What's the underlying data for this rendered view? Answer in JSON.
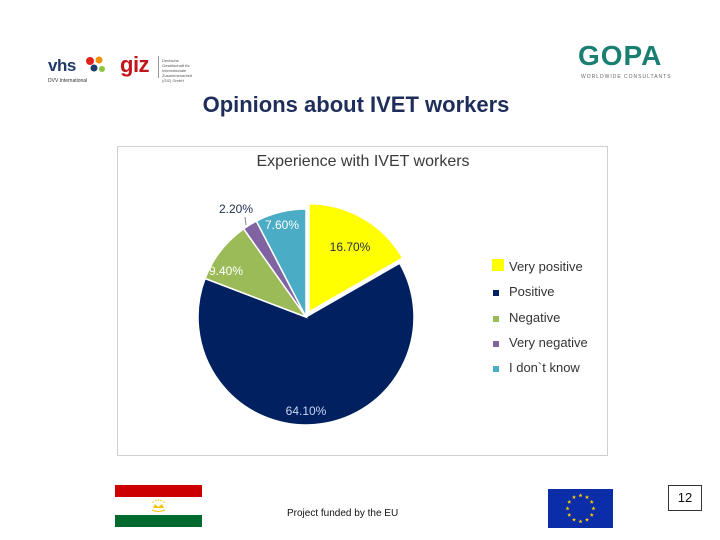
{
  "logos": {
    "vhs": {
      "name": "vhs",
      "subtitle": "DVV International"
    },
    "giz": {
      "name": "giz",
      "subtitle": "Deutsche Gesellschaft für Internationale Zusammenarbeit (GIZ) GmbH"
    },
    "gopa": {
      "name": "GOPA",
      "subtitle": "WORLDWIDE CONSULTANTS"
    }
  },
  "page_title": "Opinions about IVET workers",
  "chart_data": {
    "type": "pie",
    "title": "Experience with IVET workers",
    "categories": [
      "Very positive",
      "Positive",
      "Negative",
      "Very negative",
      "I don`t know"
    ],
    "values": [
      16.7,
      64.1,
      9.4,
      2.2,
      7.6
    ],
    "value_labels": [
      "16.70%",
      "64.10%",
      "9.40%",
      "2.20%",
      "7.60%"
    ],
    "colors": [
      "#ffff00",
      "#002060",
      "#9bbb59",
      "#8064a2",
      "#4bacc6"
    ],
    "start_angle_deg": 0,
    "direction": "clockwise",
    "legend_position": "right"
  },
  "footer": {
    "funded_text": "Project funded by the EU",
    "page_number": "12"
  }
}
